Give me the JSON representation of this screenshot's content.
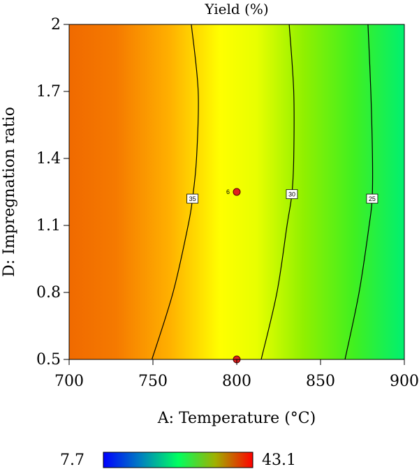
{
  "chart_data": {
    "type": "contour",
    "title": "Yield (%)",
    "xlabel": "A: Temperature (°C)",
    "ylabel": "D: Impregnation ratio",
    "xlim": [
      700,
      900
    ],
    "ylim": [
      0.5,
      2
    ],
    "x_ticks": [
      "700",
      "750",
      "800",
      "850",
      "900"
    ],
    "y_ticks": [
      "0.5",
      "0.8",
      "1.1",
      "1.4",
      "1.7",
      "2"
    ],
    "grid": false,
    "contours": [
      {
        "level": "35",
        "points": [
          [
            749.4,
            0.5
          ],
          [
            762,
            0.8
          ],
          [
            771,
            1.1
          ],
          [
            773.6,
            1.22
          ],
          [
            776,
            1.4
          ],
          [
            777,
            1.7
          ],
          [
            772.9,
            2.0
          ]
        ]
      },
      {
        "level": "30",
        "points": [
          [
            814.6,
            0.5
          ],
          [
            824,
            0.8
          ],
          [
            830,
            1.1
          ],
          [
            832.9,
            1.24
          ],
          [
            834,
            1.4
          ],
          [
            834,
            1.7
          ],
          [
            831.3,
            2.0
          ]
        ]
      },
      {
        "level": "25",
        "points": [
          [
            864.6,
            0.5
          ],
          [
            873,
            0.8
          ],
          [
            879,
            1.1
          ],
          [
            880.8,
            1.22
          ],
          [
            881,
            1.4
          ],
          [
            880,
            1.7
          ],
          [
            878.3,
            2.0
          ]
        ]
      }
    ],
    "design_points": [
      {
        "x": 800,
        "y": 1.25,
        "label": "6"
      },
      {
        "x": 800,
        "y": 0.5,
        "label": ""
      }
    ],
    "colorbar": {
      "min": "7.7",
      "max": "43.1",
      "colors": [
        "#0000ff",
        "#00c0a0",
        "#00ff60",
        "#ffff00",
        "#ff0000"
      ]
    },
    "colors": {
      "hot": "#f06a00",
      "mid": "#ffff00",
      "cool": "#00ff80",
      "point": "#e02020"
    }
  }
}
